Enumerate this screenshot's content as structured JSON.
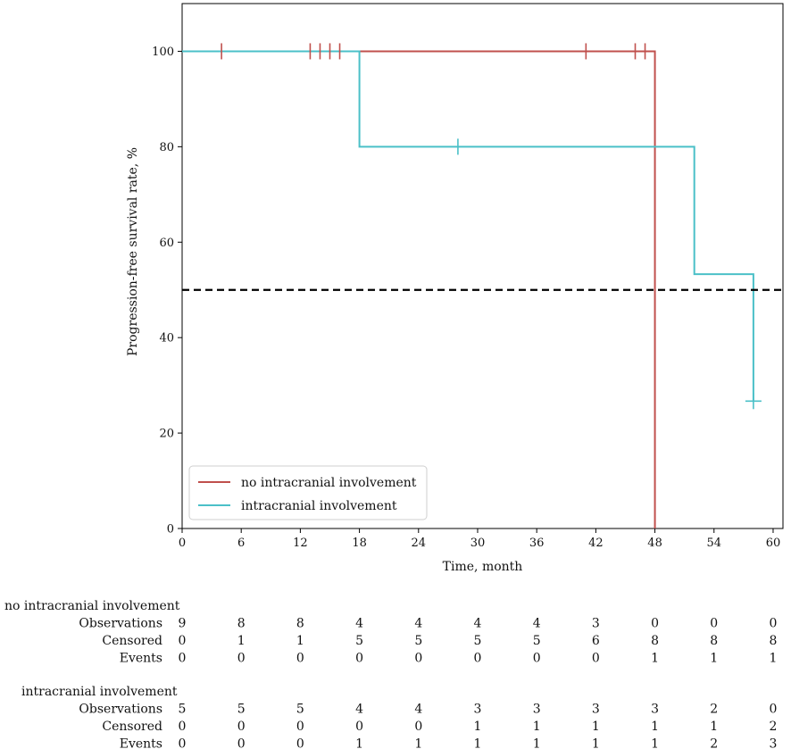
{
  "chart_data": {
    "type": "line",
    "subtype": "kaplan-meier",
    "xlabel": "Time, month",
    "ylabel": "Progression-free survival rate, %",
    "xlim": [
      0,
      61
    ],
    "ylim": [
      0,
      110
    ],
    "xticks": [
      0,
      6,
      12,
      18,
      24,
      30,
      36,
      42,
      48,
      54,
      60
    ],
    "yticks": [
      0,
      20,
      40,
      60,
      80,
      100
    ],
    "reference_line": {
      "y": 50,
      "style": "dashed",
      "color": "#000000"
    },
    "legend_position": "lower-left",
    "series": [
      {
        "name": "no intracranial involvement",
        "color": "#c0504d",
        "steps": [
          [
            0,
            100
          ],
          [
            48,
            100
          ],
          [
            48,
            0
          ]
        ],
        "censored": [
          [
            4,
            100
          ],
          [
            13,
            100
          ],
          [
            14,
            100
          ],
          [
            15,
            100
          ],
          [
            16,
            100
          ],
          [
            41,
            100
          ],
          [
            46,
            100
          ],
          [
            47,
            100
          ]
        ]
      },
      {
        "name": "intracranial involvement",
        "color": "#4bc0c8",
        "steps": [
          [
            0,
            100
          ],
          [
            18,
            100
          ],
          [
            18,
            80
          ],
          [
            52,
            80
          ],
          [
            52,
            53.3
          ],
          [
            58,
            53.3
          ],
          [
            58,
            26.7
          ]
        ],
        "censored": [
          [
            28,
            80
          ],
          [
            58,
            26.7
          ]
        ]
      }
    ]
  },
  "risk_table": {
    "groups": [
      {
        "name": "no intracranial involvement",
        "rows": [
          {
            "label": "Observations",
            "values": [
              "9",
              "8",
              "8",
              "4",
              "4",
              "4",
              "4",
              "3",
              "0",
              "0",
              "0"
            ]
          },
          {
            "label": "Censored",
            "values": [
              "0",
              "1",
              "1",
              "5",
              "5",
              "5",
              "5",
              "6",
              "8",
              "8",
              "8"
            ]
          },
          {
            "label": "Events",
            "values": [
              "0",
              "0",
              "0",
              "0",
              "0",
              "0",
              "0",
              "0",
              "1",
              "1",
              "1"
            ]
          }
        ]
      },
      {
        "name": "intracranial  involvement",
        "rows": [
          {
            "label": "Observations",
            "values": [
              "5",
              "5",
              "5",
              "4",
              "4",
              "3",
              "3",
              "3",
              "3",
              "2",
              "0"
            ]
          },
          {
            "label": "Censored",
            "values": [
              "0",
              "0",
              "0",
              "0",
              "0",
              "1",
              "1",
              "1",
              "1",
              "1",
              "2"
            ]
          },
          {
            "label": "Events",
            "values": [
              "0",
              "0",
              "0",
              "1",
              "1",
              "1",
              "1",
              "1",
              "1",
              "2",
              "3"
            ]
          }
        ]
      }
    ]
  }
}
